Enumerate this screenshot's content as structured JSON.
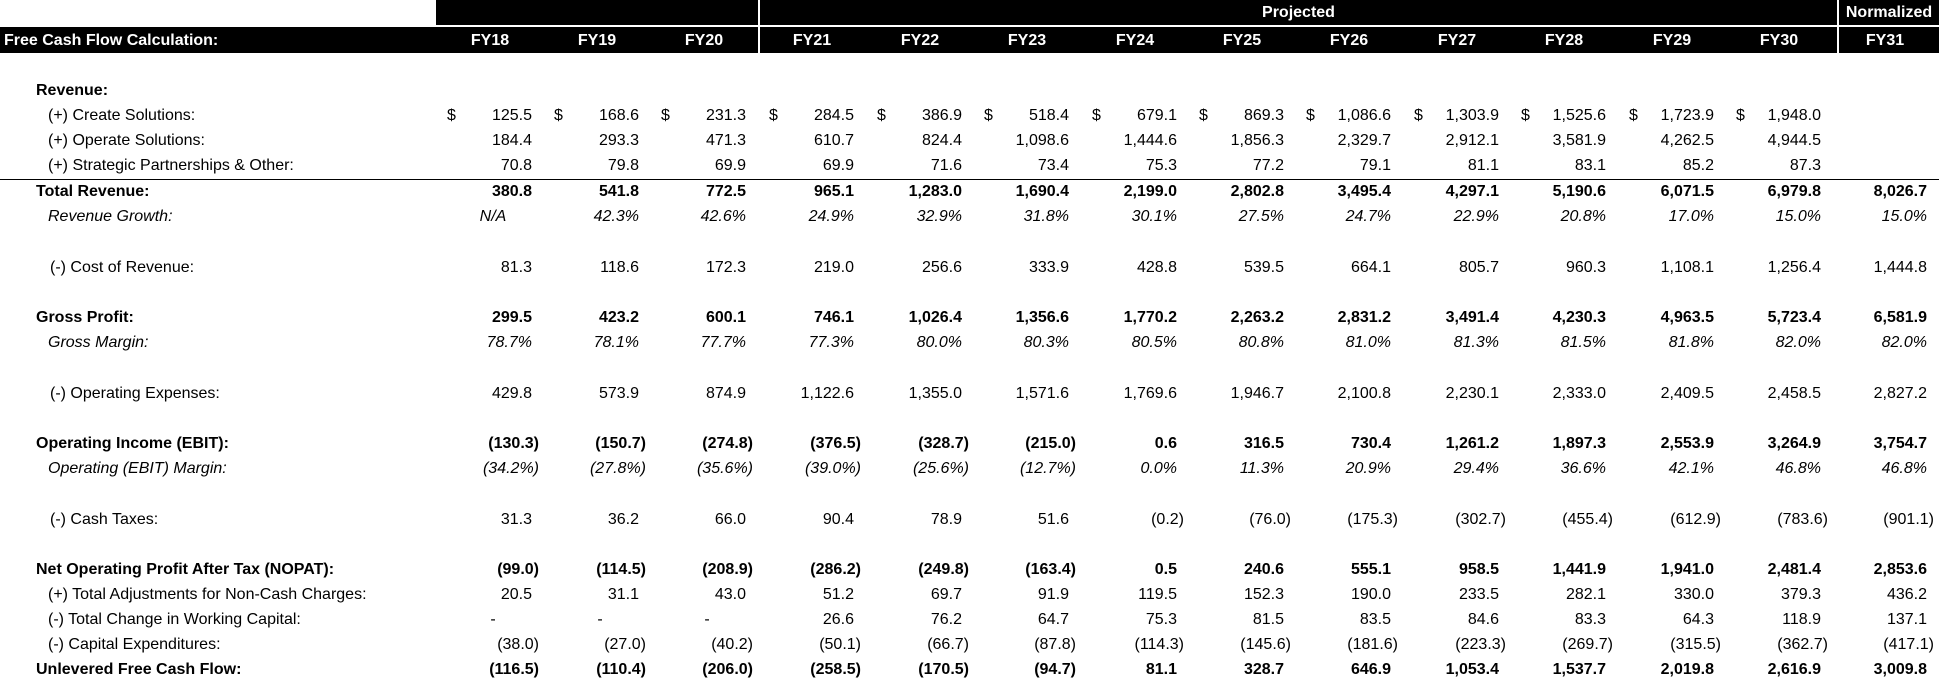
{
  "header": {
    "title": "Free Cash Flow Calculation:",
    "group_projected": "Projected",
    "group_normalized": "Normalized",
    "years": [
      "FY18",
      "FY19",
      "FY20",
      "FY21",
      "FY22",
      "FY23",
      "FY24",
      "FY25",
      "FY26",
      "FY27",
      "FY28",
      "FY29",
      "FY30",
      "FY31"
    ]
  },
  "rows": [
    {
      "label": "Revenue:",
      "style": "bold",
      "values": []
    },
    {
      "label": "(+) Create Solutions:",
      "style": "ind",
      "currency": "$",
      "values": [
        "125.5",
        "168.6",
        "231.3",
        "284.5",
        "386.9",
        "518.4",
        "679.1",
        "869.3",
        "1,086.6",
        "1,303.9",
        "1,525.6",
        "1,723.9",
        "1,948.0",
        ""
      ]
    },
    {
      "label": "(+) Operate Solutions:",
      "style": "ind",
      "values": [
        "184.4",
        "293.3",
        "471.3",
        "610.7",
        "824.4",
        "1,098.6",
        "1,444.6",
        "1,856.3",
        "2,329.7",
        "2,912.1",
        "3,581.9",
        "4,262.5",
        "4,944.5",
        ""
      ]
    },
    {
      "label": "(+) Strategic Partnerships & Other:",
      "style": "ind",
      "values": [
        "70.8",
        "79.8",
        "69.9",
        "69.9",
        "71.6",
        "73.4",
        "75.3",
        "77.2",
        "79.1",
        "81.1",
        "83.1",
        "85.2",
        "87.3",
        ""
      ]
    },
    {
      "label": "Total Revenue:",
      "style": "bold",
      "topline": true,
      "values": [
        "380.8",
        "541.8",
        "772.5",
        "965.1",
        "1,283.0",
        "1,690.4",
        "2,199.0",
        "2,802.8",
        "3,495.4",
        "4,297.1",
        "5,190.6",
        "6,071.5",
        "6,979.8",
        "8,026.7"
      ]
    },
    {
      "label": "Revenue Growth:",
      "style": "ital",
      "values": [
        "N/A",
        "42.3%",
        "42.6%",
        "24.9%",
        "32.9%",
        "31.8%",
        "30.1%",
        "27.5%",
        "24.7%",
        "22.9%",
        "20.8%",
        "17.0%",
        "15.0%",
        "15.0%"
      ]
    },
    {
      "label": "(-) Cost of Revenue:",
      "style": "sub",
      "values": [
        "81.3",
        "118.6",
        "172.3",
        "219.0",
        "256.6",
        "333.9",
        "428.8",
        "539.5",
        "664.1",
        "805.7",
        "960.3",
        "1,108.1",
        "1,256.4",
        "1,444.8"
      ]
    },
    {
      "label": "Gross Profit:",
      "style": "bold",
      "values": [
        "299.5",
        "423.2",
        "600.1",
        "746.1",
        "1,026.4",
        "1,356.6",
        "1,770.2",
        "2,263.2",
        "2,831.2",
        "3,491.4",
        "4,230.3",
        "4,963.5",
        "5,723.4",
        "6,581.9"
      ]
    },
    {
      "label": "Gross Margin:",
      "style": "ital",
      "values": [
        "78.7%",
        "78.1%",
        "77.7%",
        "77.3%",
        "80.0%",
        "80.3%",
        "80.5%",
        "80.8%",
        "81.0%",
        "81.3%",
        "81.5%",
        "81.8%",
        "82.0%",
        "82.0%"
      ]
    },
    {
      "label": "(-) Operating Expenses:",
      "style": "sub",
      "values": [
        "429.8",
        "573.9",
        "874.9",
        "1,122.6",
        "1,355.0",
        "1,571.6",
        "1,769.6",
        "1,946.7",
        "2,100.8",
        "2,230.1",
        "2,333.0",
        "2,409.5",
        "2,458.5",
        "2,827.2"
      ]
    },
    {
      "label": "Operating Income (EBIT):",
      "style": "bold",
      "values": [
        "(130.3)",
        "(150.7)",
        "(274.8)",
        "(376.5)",
        "(328.7)",
        "(215.0)",
        "0.6",
        "316.5",
        "730.4",
        "1,261.2",
        "1,897.3",
        "2,553.9",
        "3,264.9",
        "3,754.7"
      ]
    },
    {
      "label": "Operating (EBIT) Margin:",
      "style": "ital",
      "values": [
        "(34.2%)",
        "(27.8%)",
        "(35.6%)",
        "(39.0%)",
        "(25.6%)",
        "(12.7%)",
        "0.0%",
        "11.3%",
        "20.9%",
        "29.4%",
        "36.6%",
        "42.1%",
        "46.8%",
        "46.8%"
      ]
    },
    {
      "label": "(-) Cash Taxes:",
      "style": "sub",
      "values": [
        "31.3",
        "36.2",
        "66.0",
        "90.4",
        "78.9",
        "51.6",
        "(0.2)",
        "(76.0)",
        "(175.3)",
        "(302.7)",
        "(455.4)",
        "(612.9)",
        "(783.6)",
        "(901.1)"
      ]
    },
    {
      "label": "Net Operating Profit After Tax (NOPAT):",
      "style": "bold",
      "values": [
        "(99.0)",
        "(114.5)",
        "(208.9)",
        "(286.2)",
        "(249.8)",
        "(163.4)",
        "0.5",
        "240.6",
        "555.1",
        "958.5",
        "1,441.9",
        "1,941.0",
        "2,481.4",
        "2,853.6"
      ]
    },
    {
      "label": "(+) Total Adjustments for Non-Cash Charges:",
      "style": "ind",
      "values": [
        "20.5",
        "31.1",
        "43.0",
        "51.2",
        "69.7",
        "91.9",
        "119.5",
        "152.3",
        "190.0",
        "233.5",
        "282.1",
        "330.0",
        "379.3",
        "436.2"
      ]
    },
    {
      "label": "(-) Total Change in Working Capital:",
      "style": "ind",
      "values": [
        "-",
        "-",
        "-",
        "26.6",
        "76.2",
        "64.7",
        "75.3",
        "81.5",
        "83.5",
        "84.6",
        "83.3",
        "64.3",
        "118.9",
        "137.1"
      ]
    },
    {
      "label": "(-) Capital Expenditures:",
      "style": "ind",
      "values": [
        "(38.0)",
        "(27.0)",
        "(40.2)",
        "(50.1)",
        "(66.7)",
        "(87.8)",
        "(114.3)",
        "(145.6)",
        "(181.6)",
        "(223.3)",
        "(269.7)",
        "(315.5)",
        "(362.7)",
        "(417.1)"
      ]
    },
    {
      "label": "Unlevered Free Cash Flow:",
      "style": "bold",
      "values": [
        "(116.5)",
        "(110.4)",
        "(206.0)",
        "(258.5)",
        "(170.5)",
        "(94.7)",
        "81.1",
        "328.7",
        "646.9",
        "1,053.4",
        "1,537.7",
        "2,019.8",
        "2,616.9",
        "3,009.8"
      ]
    }
  ]
}
